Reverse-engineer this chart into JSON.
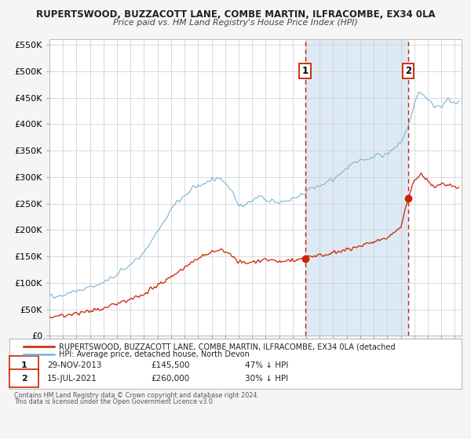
{
  "title": "RUPERTSWOOD, BUZZACOTT LANE, COMBE MARTIN, ILFRACOMBE, EX34 0LA",
  "subtitle": "Price paid vs. HM Land Registry's House Price Index (HPI)",
  "ylim": [
    0,
    560000
  ],
  "xlim_start": 1995.0,
  "xlim_end": 2025.5,
  "hpi_color": "#7ab3d4",
  "price_color": "#cc2200",
  "vline1_x": 2013.91,
  "vline2_x": 2021.54,
  "dot1_x": 2013.91,
  "dot1_y": 145500,
  "dot2_x": 2021.54,
  "dot2_y": 260000,
  "legend_label1": "RUPERTSWOOD, BUZZACOTT LANE, COMBE MARTIN, ILFRACOMBE, EX34 0LA (detached",
  "legend_label2": "HPI: Average price, detached house, North Devon",
  "note1_date": "29-NOV-2013",
  "note1_price": "£145,500",
  "note1_hpi": "47% ↓ HPI",
  "note2_date": "15-JUL-2021",
  "note2_price": "£260,000",
  "note2_hpi": "30% ↓ HPI",
  "footer1": "Contains HM Land Registry data © Crown copyright and database right 2024.",
  "footer2": "This data is licensed under the Open Government Licence v3.0.",
  "background_color": "#f5f5f5",
  "plot_bg_color": "#ffffff",
  "highlight_color": "#ddeaf5"
}
